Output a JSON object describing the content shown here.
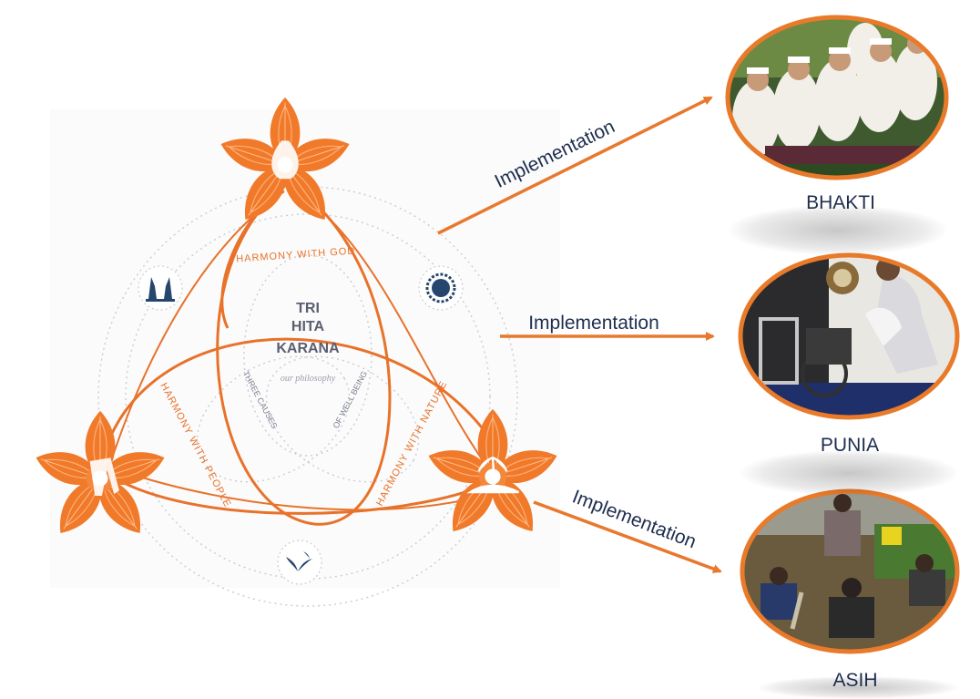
{
  "diagram": {
    "center_title": [
      "TRI",
      "HITA",
      "KARANA"
    ],
    "center_subtitle": "our philosophy",
    "inner_left": "THREE CAUSES",
    "inner_right": "OF WELL BEING",
    "arc_top": "HARMONY WITH GOD",
    "arc_left": "HARMONY WITH PEOPLE",
    "arc_right": "HARMONY WITH NATURE",
    "badges": [
      "temple-gate-icon",
      "sun-icon",
      "birds-icon"
    ],
    "accent_color": "#e8722a",
    "flower_color": "#f07a2a"
  },
  "arrows": [
    {
      "label": "Implementation",
      "target": "BHAKTI"
    },
    {
      "label": "Implementation",
      "target": "PUNIA"
    },
    {
      "label": "Implementation",
      "target": "ASIH"
    }
  ],
  "photos": [
    {
      "label": "BHAKTI",
      "scene": "prayer-ceremony-photo"
    },
    {
      "label": "PUNIA",
      "scene": "wheelchair-donation-photo"
    },
    {
      "label": "ASIH",
      "scene": "environment-cleanup-photo"
    }
  ],
  "colors": {
    "arrow": "#e8782d",
    "text": "#1f2d4e",
    "frame": "#e87a2a"
  }
}
